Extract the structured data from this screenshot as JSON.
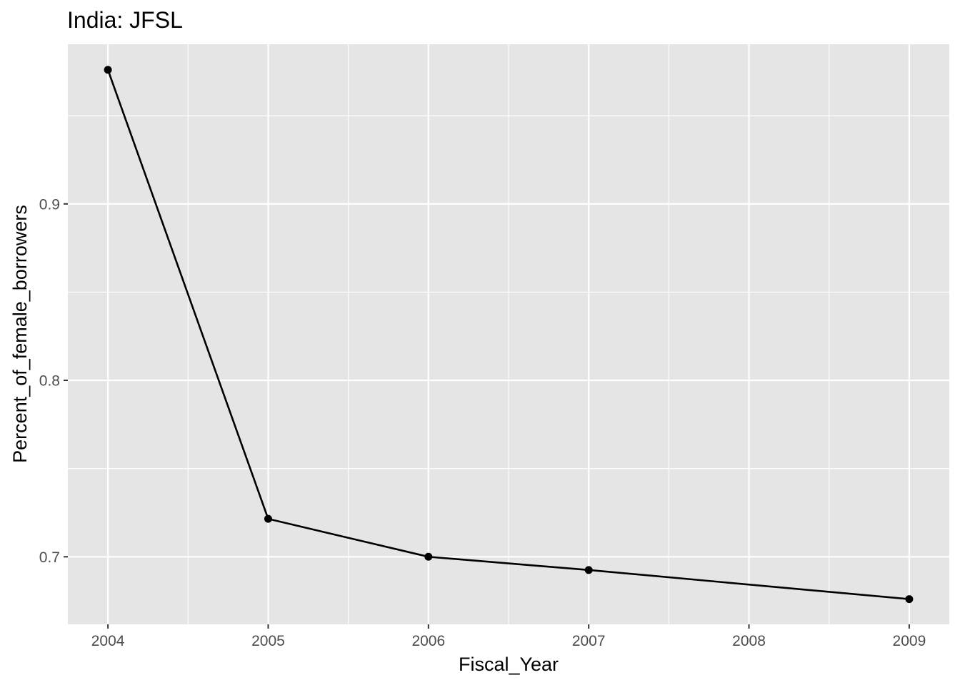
{
  "chart_data": {
    "type": "line",
    "title": "India:  JFSL",
    "xlabel": "Fiscal_Year",
    "ylabel": "Percent_of_female_borrowers",
    "x": [
      2004,
      2005,
      2006,
      2007,
      2008,
      2009
    ],
    "series": [
      {
        "x": [
          2004,
          2005,
          2006,
          2007,
          2009
        ],
        "values": [
          0.976,
          0.7215,
          0.7,
          0.6925,
          0.676
        ]
      }
    ],
    "x_ticks": [
      2004,
      2005,
      2006,
      2007,
      2008,
      2009
    ],
    "y_ticks": [
      0.7,
      0.8,
      0.9
    ],
    "xlim": [
      2003.75,
      2009.25
    ],
    "ylim": [
      0.6617,
      0.9905
    ],
    "grid": true,
    "colors": {
      "panel_background": "#e5e5e5",
      "grid": "#ffffff",
      "line": "#000000",
      "tick_label": "#4d4d4d"
    }
  }
}
